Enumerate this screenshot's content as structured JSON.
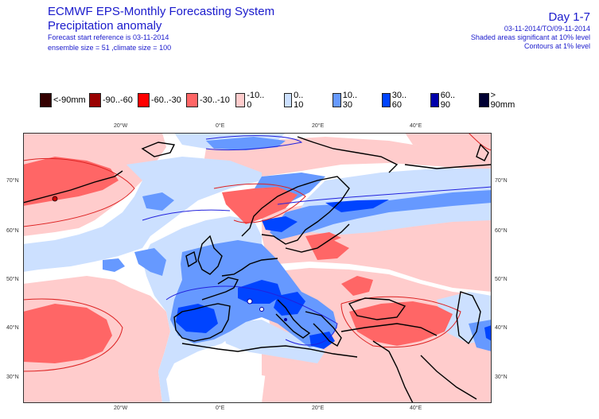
{
  "header": {
    "title_line1": "ECMWF EPS-Monthly Forecasting System",
    "title_line2": "Precipitation anomaly",
    "forecast_start": "Forecast start reference is 03-11-2014",
    "ensemble": "ensemble size = 51 ,climate size = 100",
    "day": "Day 1-7",
    "period": "03-11-2014/TO/09-11-2014",
    "shaded_note": "Shaded areas significant at 10% level",
    "contour_note": "Contours at 1% level"
  },
  "legend": [
    {
      "label": "<-90mm",
      "color": "#330000"
    },
    {
      "label": "-90..-60",
      "color": "#990000"
    },
    {
      "label": "-60..-30",
      "color": "#ff0000"
    },
    {
      "label": "-30..-10",
      "color": "#ff6666"
    },
    {
      "label": "-10..  0",
      "color": "#ffcccc"
    },
    {
      "label": "0..  10",
      "color": "#cce0ff"
    },
    {
      "label": "10..  30",
      "color": "#6699ff"
    },
    {
      "label": "30..  60",
      "color": "#0044ff"
    },
    {
      "label": "60..  90",
      "color": "#0000aa"
    },
    {
      "label": ">  90mm",
      "color": "#000033"
    }
  ],
  "axes": {
    "lon_top": [
      "20°W",
      "0°E",
      "20°E",
      "40°E"
    ],
    "lon_bottom": [
      "20°W",
      "0°E",
      "20°E",
      "40°E"
    ],
    "lat_left": [
      "70°N",
      "60°N",
      "50°N",
      "40°N",
      "30°N"
    ],
    "lat_right": [
      "70°N",
      "60°N",
      "50°N",
      "40°N",
      "30°N"
    ]
  }
}
